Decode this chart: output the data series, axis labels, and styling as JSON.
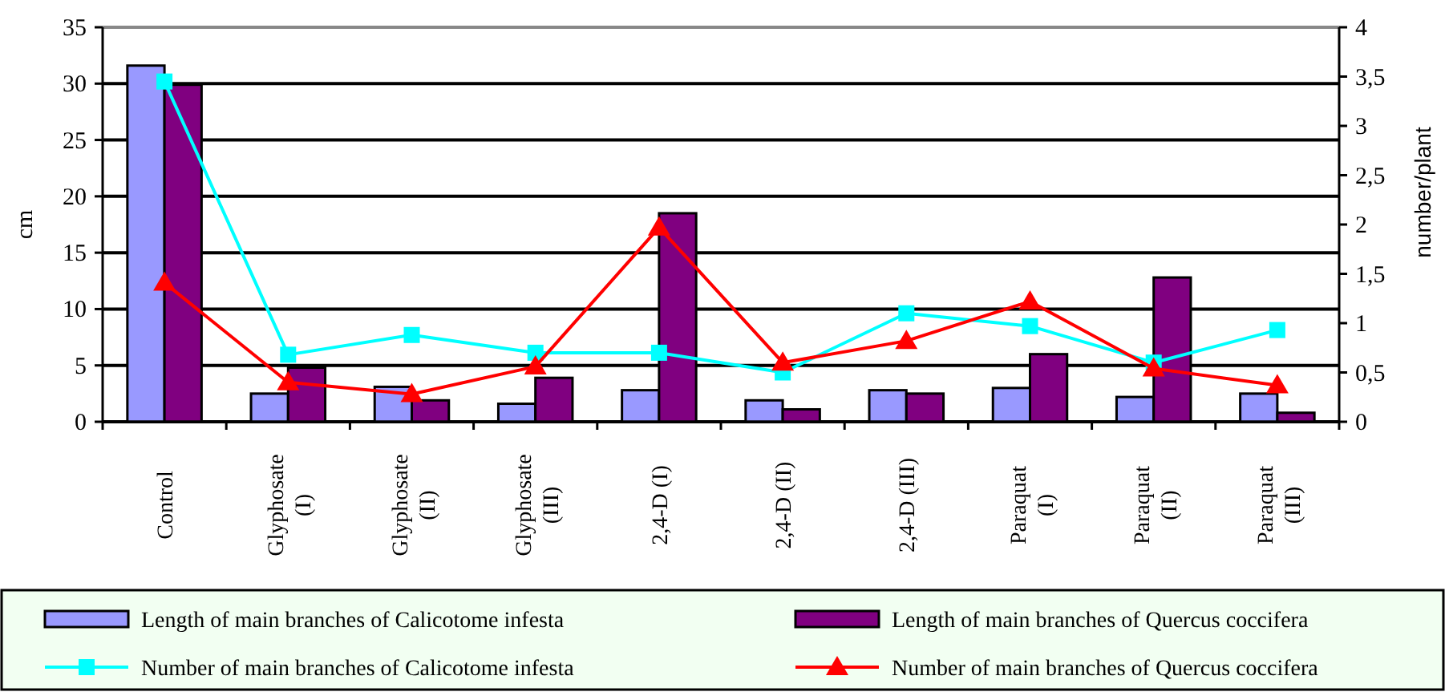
{
  "chart_data": {
    "type": "bar",
    "ylabel": "cm",
    "y2label": "number/plant",
    "categories": [
      "Control",
      "Glyphosate (I)",
      "Glyphosate (II)",
      "Glyphosate (III)",
      "2,4-D (I)",
      "2,4-D (II)",
      "2,4-D (III)",
      "Paraquat (I)",
      "Paraquat (II)",
      "Paraquat (III)"
    ],
    "series": [
      {
        "name": "Length of main branches of Calicotome infesta",
        "color": "#9999ff",
        "values": [
          31.6,
          2.5,
          3.1,
          1.6,
          2.8,
          1.9,
          2.8,
          3.0,
          2.2,
          2.5
        ]
      },
      {
        "name": "Length of main branches of Quercus coccifera",
        "color": "#800080",
        "values": [
          29.9,
          4.8,
          1.9,
          3.9,
          18.5,
          1.1,
          2.5,
          6.0,
          12.8,
          0.8
        ]
      },
      {
        "name": "Number of main branches of Calicotome infesta",
        "type": "line",
        "axis": "y2",
        "color": "#00ffff",
        "marker": "square",
        "values": [
          3.45,
          0.68,
          0.88,
          0.7,
          0.7,
          0.5,
          1.1,
          0.97,
          0.6,
          0.93
        ]
      },
      {
        "name": "Number of main branches of Quercus coccifera",
        "type": "line",
        "axis": "y2",
        "color": "#ff0000",
        "marker": "triangle",
        "values": [
          1.41,
          0.4,
          0.28,
          0.56,
          1.97,
          0.6,
          0.82,
          1.22,
          0.54,
          0.37
        ]
      }
    ],
    "ylim": [
      0,
      35
    ],
    "yticks": [
      0,
      5,
      10,
      15,
      20,
      25,
      30,
      35
    ],
    "y2lim": [
      0,
      4
    ],
    "y2ticks": [
      0,
      {
        "value": 0.5,
        "label": "0,5"
      },
      1,
      {
        "value": 1.5,
        "label": "1,5"
      },
      2,
      {
        "value": 2.5,
        "label": "2,5"
      },
      3,
      {
        "value": 3.5,
        "label": "3,5"
      },
      4
    ],
    "grid": "y",
    "legend": "bottom"
  }
}
